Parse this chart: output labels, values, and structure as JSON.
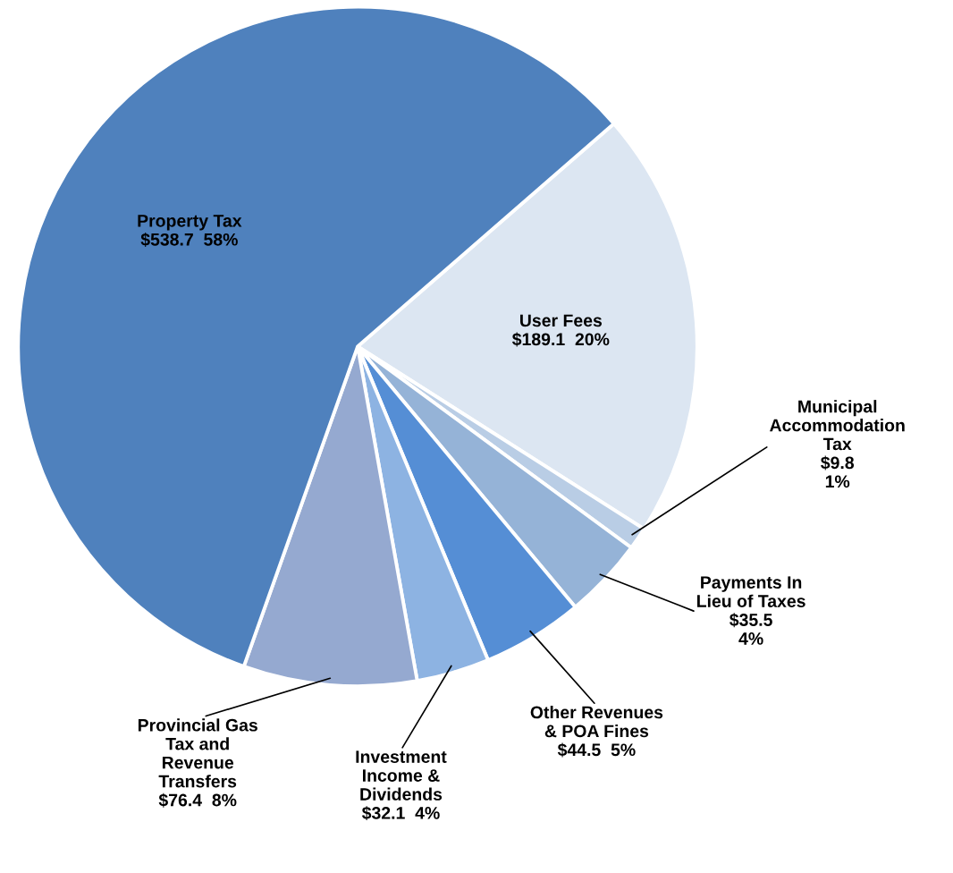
{
  "chart_data": {
    "type": "pie",
    "categories": [
      "User Fees",
      "Municipal\nAccommodation\nTax",
      "Payments In\nLieu of Taxes",
      "Other Revenues\n& POA Fines",
      "Investment\nIncome &\nDividends",
      "Provincial Gas\nTax and\nRevenue\nTransfers",
      "Property Tax"
    ],
    "values": [
      189.1,
      9.8,
      35.5,
      44.5,
      32.1,
      76.4,
      538.7
    ],
    "value_labels": [
      "$189.1  20%",
      "$9.8\n1%",
      "$35.5\n4%",
      "$44.5  5%",
      "$32.1  4%",
      "$76.4  8%",
      "$538.7  58%"
    ],
    "colors": [
      "#dce6f2",
      "#b9cde5",
      "#95b3d7",
      "#558ed5",
      "#8db3e2",
      "#95a9d0",
      "#4f81bd"
    ]
  }
}
